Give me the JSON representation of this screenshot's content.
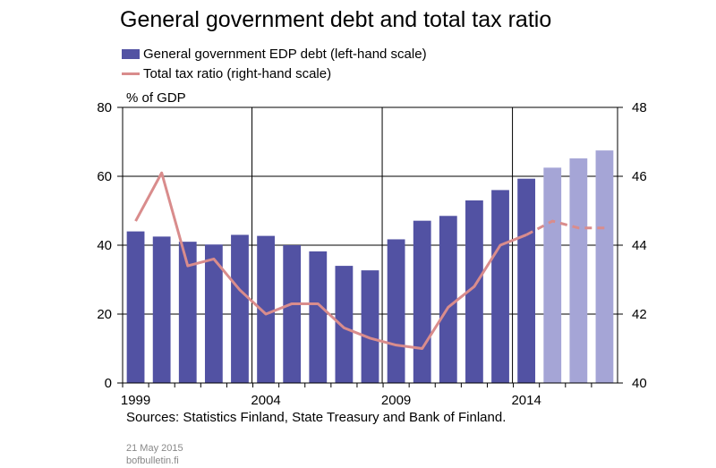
{
  "chart_data": {
    "type": "bar+line",
    "title": "General government debt and total tax ratio",
    "unit_label": "% of GDP",
    "legend": [
      {
        "name": "General government EDP debt (left-hand scale)",
        "type": "bar",
        "color": "#5252a3"
      },
      {
        "name": "Total tax ratio (right-hand scale)",
        "type": "line",
        "color": "#d98c8c"
      }
    ],
    "x": [
      1999,
      2000,
      2001,
      2002,
      2003,
      2004,
      2005,
      2006,
      2007,
      2008,
      2009,
      2010,
      2011,
      2012,
      2013,
      2014,
      2015,
      2016,
      2017
    ],
    "x_tick_labels": [
      "1999",
      "2004",
      "2009",
      "2014"
    ],
    "bars": {
      "name": "General government EDP debt (left-hand scale)",
      "values": [
        44.0,
        42.5,
        41.0,
        40.2,
        43.0,
        42.7,
        40.0,
        38.2,
        34.0,
        32.7,
        41.7,
        47.1,
        48.5,
        53.0,
        56.0,
        59.3,
        62.5,
        65.2,
        67.5
      ],
      "forecast_from_index": 16,
      "color": "#5252a3",
      "forecast_color": "#a5a5d6"
    },
    "line": {
      "name": "Total tax ratio (right-hand scale)",
      "values": [
        44.7,
        46.1,
        43.4,
        43.6,
        42.7,
        42.0,
        42.3,
        42.3,
        41.6,
        41.3,
        41.1,
        41.0,
        42.2,
        42.8,
        44.0,
        44.3,
        44.7,
        44.5,
        44.5
      ],
      "forecast_from_index": 16,
      "color": "#d98c8c"
    },
    "y_left": {
      "min": 0,
      "max": 80,
      "ticks": [
        0,
        20,
        40,
        60,
        80
      ]
    },
    "y_right": {
      "min": 40,
      "max": 48,
      "ticks": [
        40,
        42,
        44,
        46,
        48
      ]
    },
    "grid": true,
    "legend_placement": "top-left"
  },
  "sources": "Sources: Statistics Finland, State Treasury and Bank of Finland.",
  "date": "21 May 2015",
  "site": "bofbulletin.fi"
}
